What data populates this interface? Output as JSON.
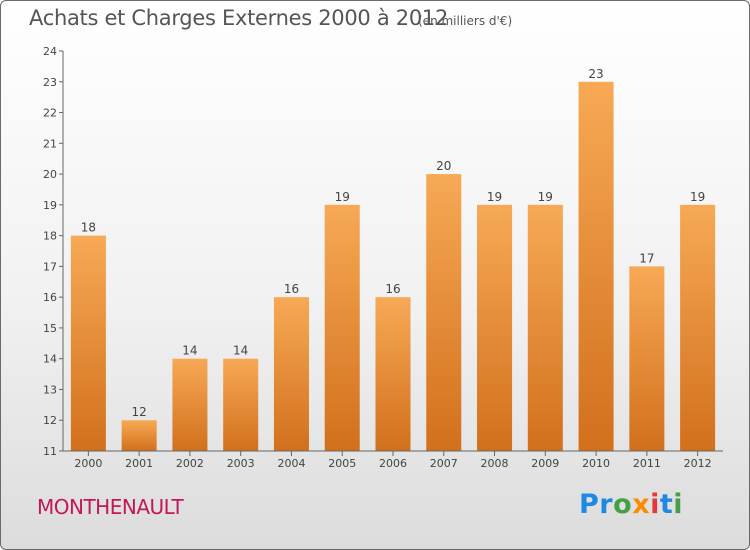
{
  "title": "Achats et Charges Externes 2000 à 2012",
  "subtitle": "(en milliers d'€)",
  "city": "MONTHENAULT",
  "logo": {
    "letters": [
      {
        "ch": "P",
        "color": "#1e88e5"
      },
      {
        "ch": "r",
        "color": "#1e88e5"
      },
      {
        "ch": "o",
        "color": "#43a047"
      },
      {
        "ch": "x",
        "color": "#fb8c00"
      },
      {
        "ch": "i",
        "color": "#e53935"
      },
      {
        "ch": "t",
        "color": "#1e88e5"
      },
      {
        "ch": "i",
        "color": "#43a047"
      }
    ]
  },
  "colors": {
    "bar_top": "#f7a955",
    "bar_bottom": "#d2701c",
    "title": "#555555",
    "city": "#c2185b"
  },
  "chart_data": {
    "type": "bar",
    "categories": [
      "2000",
      "2001",
      "2002",
      "2003",
      "2004",
      "2005",
      "2006",
      "2007",
      "2008",
      "2009",
      "2010",
      "2011",
      "2012"
    ],
    "values": [
      18,
      12,
      14,
      14,
      16,
      19,
      16,
      20,
      19,
      19,
      23,
      17,
      19
    ],
    "ylim": [
      11,
      24
    ],
    "yticks": [
      11,
      12,
      13,
      14,
      15,
      16,
      17,
      18,
      19,
      20,
      21,
      22,
      23,
      24
    ],
    "grid": false,
    "title": "Achats et Charges Externes 2000 à 2012",
    "xlabel": "",
    "ylabel": ""
  }
}
